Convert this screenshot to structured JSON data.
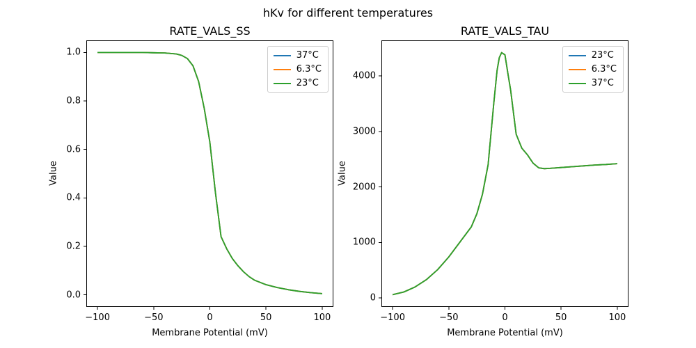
{
  "figure": {
    "suptitle": "hKv for different temperatures",
    "background": "#ffffff"
  },
  "colors": {
    "series_blue": "#1f77b4",
    "series_orange": "#ff7f0e",
    "series_green": "#2ca02c",
    "axis": "#000000",
    "legend_border": "#cccccc"
  },
  "chart_data": [
    {
      "type": "line",
      "title": "RATE_VALS_SS",
      "xlabel": "Membrane Potential (mV)",
      "ylabel": "Value",
      "xlim": [
        -110,
        110
      ],
      "ylim": [
        -0.05,
        1.05
      ],
      "grid": false,
      "legend_loc": "upper right",
      "xticks": [
        -100,
        -50,
        0,
        50,
        100
      ],
      "xtick_labels": [
        "−100",
        "−50",
        "0",
        "50",
        "100"
      ],
      "yticks": [
        0.0,
        0.2,
        0.4,
        0.6,
        0.8,
        1.0
      ],
      "ytick_labels": [
        "0.0",
        "0.2",
        "0.4",
        "0.6",
        "0.8",
        "1.0"
      ],
      "legend": [
        {
          "label": "37°C",
          "color": "#1f77b4"
        },
        {
          "label": "6.3°C",
          "color": "#ff7f0e"
        },
        {
          "label": "23°C",
          "color": "#2ca02c"
        }
      ],
      "x": [
        -100,
        -90,
        -80,
        -70,
        -60,
        -50,
        -40,
        -30,
        -25,
        -20,
        -15,
        -10,
        -5,
        0,
        5,
        10,
        15,
        20,
        25,
        30,
        35,
        40,
        50,
        60,
        70,
        80,
        90,
        100
      ],
      "series": [
        {
          "name": "37°C",
          "color": "#1f77b4",
          "values": [
            1.0,
            1.0,
            1.0,
            1.0,
            1.0,
            0.999,
            0.998,
            0.994,
            0.988,
            0.975,
            0.945,
            0.88,
            0.77,
            0.63,
            0.42,
            0.24,
            0.19,
            0.15,
            0.12,
            0.095,
            0.075,
            0.06,
            0.042,
            0.03,
            0.021,
            0.014,
            0.009,
            0.005
          ]
        },
        {
          "name": "6.3°C",
          "color": "#ff7f0e",
          "values": [
            1.0,
            1.0,
            1.0,
            1.0,
            1.0,
            0.999,
            0.998,
            0.994,
            0.988,
            0.975,
            0.945,
            0.88,
            0.77,
            0.63,
            0.42,
            0.24,
            0.19,
            0.15,
            0.12,
            0.095,
            0.075,
            0.06,
            0.042,
            0.03,
            0.021,
            0.014,
            0.009,
            0.005
          ]
        },
        {
          "name": "23°C",
          "color": "#2ca02c",
          "values": [
            1.0,
            1.0,
            1.0,
            1.0,
            1.0,
            0.999,
            0.998,
            0.994,
            0.988,
            0.975,
            0.945,
            0.88,
            0.77,
            0.63,
            0.42,
            0.24,
            0.19,
            0.15,
            0.12,
            0.095,
            0.075,
            0.06,
            0.042,
            0.03,
            0.021,
            0.014,
            0.009,
            0.005
          ]
        }
      ]
    },
    {
      "type": "line",
      "title": "RATE_VALS_TAU",
      "xlabel": "Membrane Potential (mV)",
      "ylabel": "Value",
      "xlim": [
        -110,
        110
      ],
      "ylim": [
        -160,
        4640
      ],
      "grid": false,
      "legend_loc": "upper right",
      "xticks": [
        -100,
        -50,
        0,
        50,
        100
      ],
      "xtick_labels": [
        "−100",
        "−50",
        "0",
        "50",
        "100"
      ],
      "yticks": [
        0,
        1000,
        2000,
        3000,
        4000
      ],
      "ytick_labels": [
        "0",
        "1000",
        "2000",
        "3000",
        "4000"
      ],
      "legend": [
        {
          "label": "23°C",
          "color": "#1f77b4"
        },
        {
          "label": "6.3°C",
          "color": "#ff7f0e"
        },
        {
          "label": "37°C",
          "color": "#2ca02c"
        }
      ],
      "x": [
        -100,
        -90,
        -80,
        -70,
        -60,
        -50,
        -40,
        -30,
        -25,
        -20,
        -15,
        -10,
        -7,
        -5,
        -3,
        0,
        3,
        5,
        10,
        15,
        20,
        25,
        30,
        35,
        40,
        50,
        60,
        70,
        80,
        90,
        100
      ],
      "series": [
        {
          "name": "23°C",
          "color": "#1f77b4",
          "values": [
            60,
            110,
            200,
            330,
            510,
            740,
            1010,
            1280,
            1520,
            1870,
            2400,
            3500,
            4100,
            4330,
            4420,
            4380,
            4000,
            3750,
            2950,
            2700,
            2580,
            2430,
            2345,
            2330,
            2335,
            2350,
            2365,
            2380,
            2395,
            2405,
            2420
          ]
        },
        {
          "name": "6.3°C",
          "color": "#ff7f0e",
          "values": [
            60,
            110,
            200,
            330,
            510,
            740,
            1010,
            1280,
            1520,
            1870,
            2400,
            3500,
            4100,
            4330,
            4420,
            4380,
            4000,
            3750,
            2950,
            2700,
            2580,
            2430,
            2345,
            2330,
            2335,
            2350,
            2365,
            2380,
            2395,
            2405,
            2420
          ]
        },
        {
          "name": "37°C",
          "color": "#2ca02c",
          "values": [
            60,
            110,
            200,
            330,
            510,
            740,
            1010,
            1280,
            1520,
            1870,
            2400,
            3500,
            4100,
            4330,
            4420,
            4380,
            4000,
            3750,
            2950,
            2700,
            2580,
            2430,
            2345,
            2330,
            2335,
            2350,
            2365,
            2380,
            2395,
            2405,
            2420
          ]
        }
      ]
    }
  ]
}
